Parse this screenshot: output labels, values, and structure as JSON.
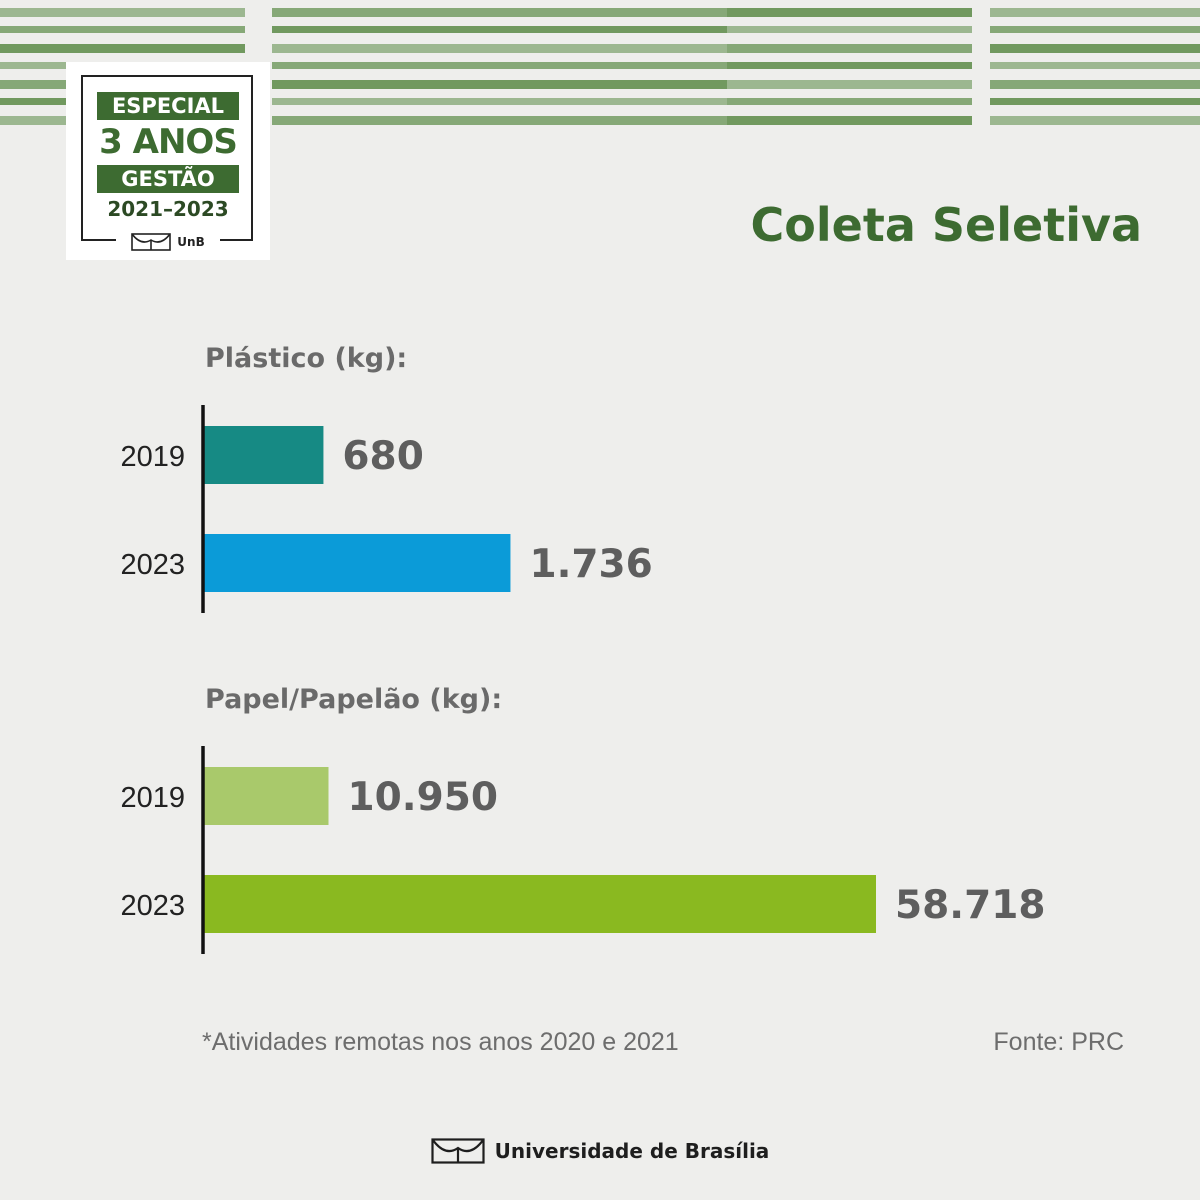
{
  "badge": {
    "line1": "ESPECIAL",
    "line2": "3 ANOS",
    "line3": "GESTÃO",
    "years": "2021–2023",
    "logo_label": "UnB"
  },
  "title": "Coleta Seletiva",
  "colors": {
    "brand_green": "#3d6b31",
    "stripe_green": "#5a8a46",
    "plastic_2019": "#168a84",
    "plastic_2023": "#0b9bd8",
    "paper_2019": "#a9c96b",
    "paper_2023": "#8ab920",
    "value_text": "#5e5e5e"
  },
  "chart_data": [
    {
      "type": "bar",
      "orientation": "horizontal",
      "title": "Plástico (kg):",
      "categories": [
        "2019",
        "2023"
      ],
      "values": [
        680,
        1736
      ],
      "value_labels": [
        "680",
        "1.736"
      ],
      "colors": [
        "#168a84",
        "#0b9bd8"
      ]
    },
    {
      "type": "bar",
      "orientation": "horizontal",
      "title": "Papel/Papelão (kg):",
      "categories": [
        "2019",
        "2023"
      ],
      "values": [
        10950,
        58718
      ],
      "value_labels": [
        "10.950",
        "58.718"
      ],
      "colors": [
        "#a9c96b",
        "#8ab920"
      ]
    }
  ],
  "note": "*Atividades remotas nos anos 2020 e 2021",
  "source": "Fonte: PRC",
  "footer": {
    "label": "Universidade de Brasília"
  }
}
